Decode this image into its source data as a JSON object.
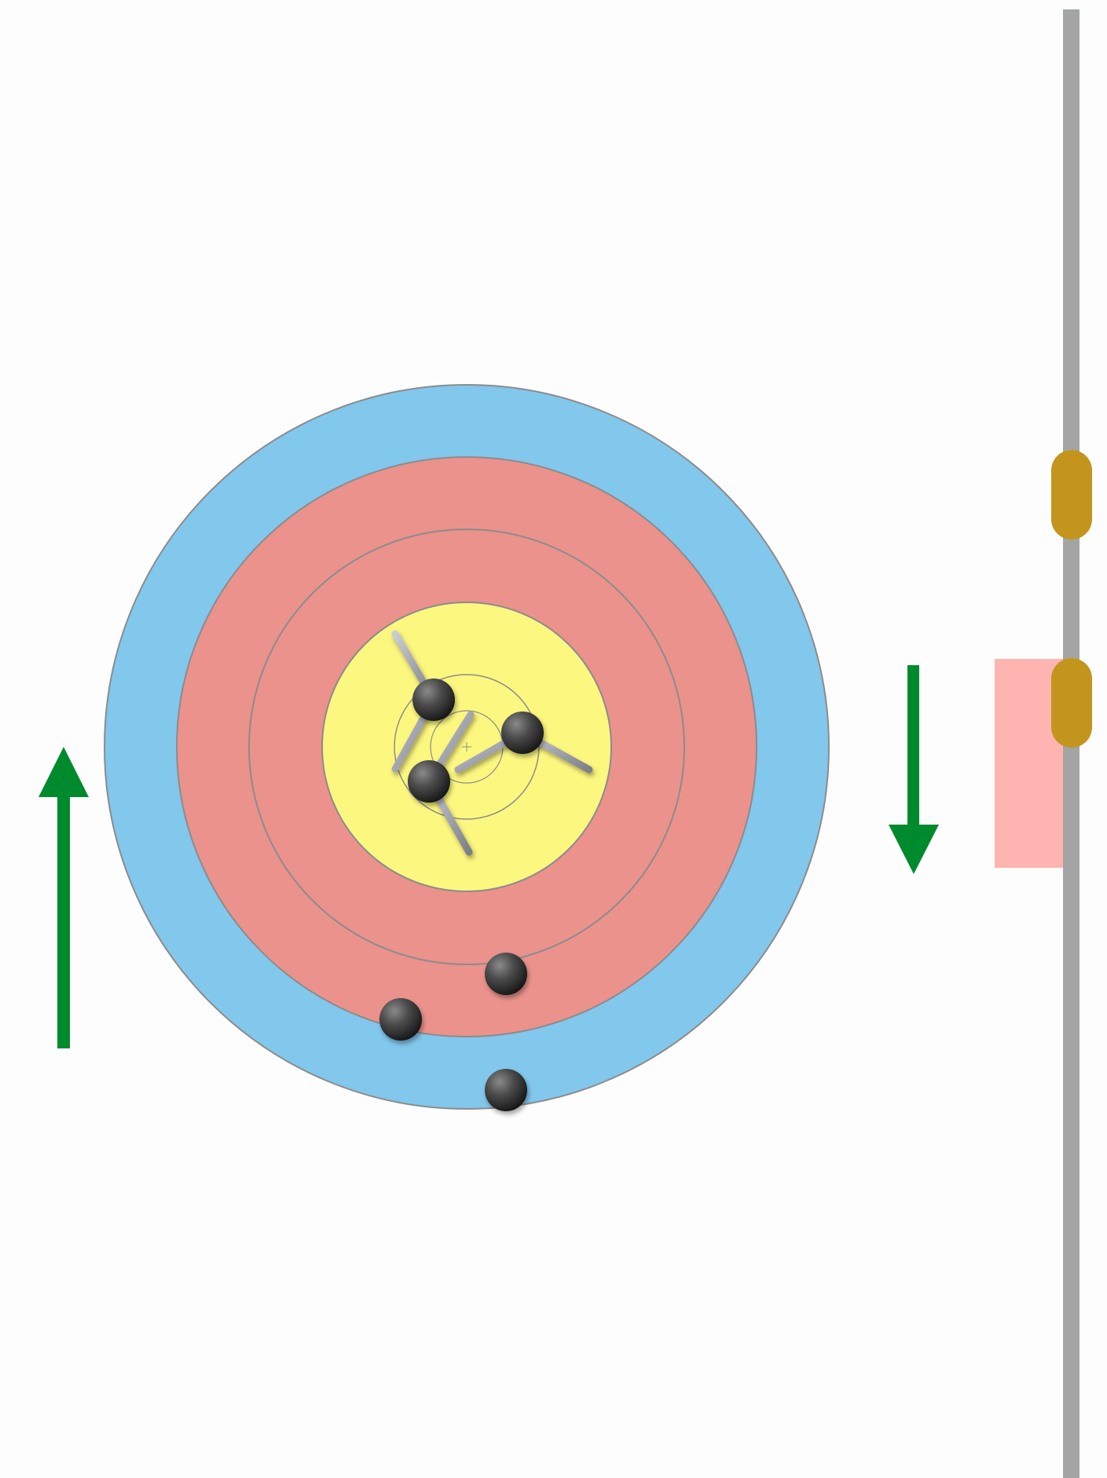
{
  "colors": {
    "background": "#fdfdfd",
    "ring_outer": "#82c7ec",
    "ring_red": "#eb928c",
    "ring_inner": "#fcf77f",
    "ring_stroke": "#8c8c8c",
    "arrow": "#008a2e",
    "rail": "#a2a5a3",
    "clip": "#c4951d",
    "highlight_zone": "#feb4b1",
    "arrow_shaft": "#9a9da5"
  },
  "target": {
    "rings": [
      "outer-blue-ring",
      "red-ring-outer",
      "red-ring-inner",
      "yellow-center"
    ],
    "center_marks": "crosshair"
  },
  "hits": {
    "center_count": 3,
    "outer_count": 3
  },
  "indicators": {
    "left_arrow": "up",
    "right_arrow": "down"
  },
  "rail": {
    "clips": 2,
    "highlight": true
  }
}
